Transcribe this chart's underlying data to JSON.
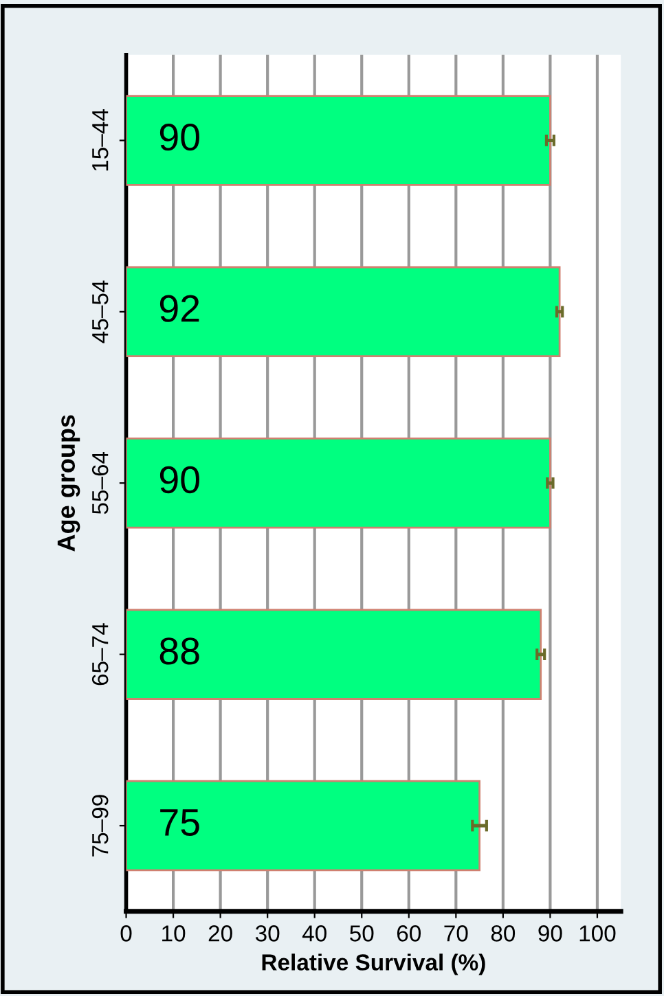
{
  "chart_data": {
    "type": "bar",
    "orientation": "horizontal",
    "xlabel": "Relative Survival (%)",
    "ylabel": "Age groups",
    "categories": [
      "15–44",
      "45–54",
      "55–64",
      "65–74",
      "75–99"
    ],
    "values": [
      90,
      92,
      90,
      88,
      75
    ],
    "errors": [
      0.8,
      0.6,
      0.6,
      0.8,
      1.5
    ],
    "color": "#00ff80",
    "xlim": [
      0,
      105
    ],
    "xticks": [
      0,
      10,
      20,
      30,
      40,
      50,
      60,
      70,
      80,
      90,
      100
    ],
    "grid": "x",
    "data_labels": true
  }
}
